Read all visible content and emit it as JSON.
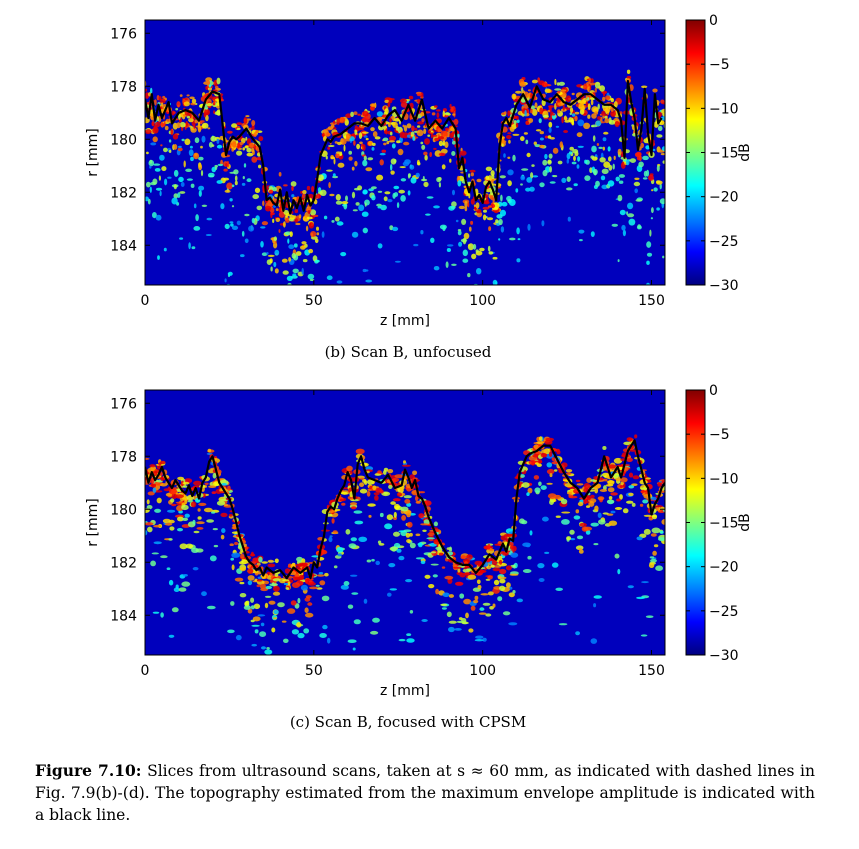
{
  "chart_data": [
    {
      "type": "heatmap",
      "panel": "b",
      "subcaption": "(b) Scan B, unfocused",
      "xlabel": "z [mm]",
      "ylabel": "r [mm]",
      "xlim": [
        0,
        154
      ],
      "ylim": [
        185.5,
        175.5
      ],
      "xticks": [
        0,
        50,
        100,
        150
      ],
      "yticks": [
        176,
        178,
        180,
        182,
        184
      ],
      "colorbar": {
        "label": "dB",
        "range": [
          -30,
          0
        ],
        "ticks": [
          0,
          -5,
          -10,
          -15,
          -20,
          -25,
          -30
        ]
      },
      "topography": {
        "z": [
          0,
          1,
          2,
          3,
          4,
          5,
          6,
          7,
          8,
          10,
          12,
          14,
          16,
          18,
          20,
          22,
          24,
          25,
          26,
          27,
          28,
          30,
          32,
          34,
          35,
          36,
          37,
          38,
          39,
          40,
          41,
          42,
          43,
          44,
          45,
          46,
          47,
          48,
          49,
          50,
          51,
          52,
          53,
          54,
          55,
          56,
          58,
          60,
          62,
          64,
          66,
          68,
          70,
          72,
          74,
          76,
          78,
          80,
          82,
          84,
          86,
          88,
          90,
          92,
          93,
          94,
          95,
          96,
          97,
          98,
          99,
          100,
          101,
          102,
          103,
          104,
          105,
          106,
          107,
          108,
          110,
          112,
          114,
          116,
          118,
          120,
          122,
          124,
          126,
          128,
          130,
          132,
          134,
          136,
          138,
          140,
          141,
          142,
          143,
          144,
          145,
          146,
          147,
          148,
          149,
          150,
          151,
          152,
          153
        ],
        "r": [
          178.5,
          179.2,
          178.3,
          179.3,
          178.7,
          179.2,
          178.9,
          178.6,
          179.4,
          179.0,
          178.9,
          179.0,
          179.3,
          178.5,
          178.2,
          178.3,
          180.6,
          180.1,
          179.9,
          180.0,
          179.9,
          179.6,
          180.0,
          180.3,
          181.0,
          182.3,
          182.2,
          182.4,
          182.5,
          181.9,
          182.7,
          182.0,
          182.8,
          182.3,
          182.6,
          182.2,
          182.7,
          182.1,
          182.5,
          182.3,
          181.5,
          180.6,
          180.3,
          180.0,
          180.1,
          179.9,
          179.8,
          179.6,
          179.4,
          179.4,
          179.5,
          179.2,
          179.5,
          179.1,
          178.9,
          179.3,
          178.7,
          179.3,
          178.5,
          179.6,
          179.3,
          179.6,
          179.2,
          179.6,
          181.1,
          180.7,
          181.6,
          182.0,
          181.6,
          182.3,
          182.1,
          182.4,
          181.8,
          181.6,
          181.9,
          182.3,
          180.3,
          179.4,
          179.2,
          179.5,
          178.7,
          178.3,
          178.8,
          178.0,
          178.5,
          178.6,
          178.3,
          178.6,
          178.7,
          178.5,
          178.3,
          178.3,
          178.5,
          178.7,
          178.7,
          178.9,
          179.3,
          180.7,
          177.8,
          178.6,
          179.2,
          180.4,
          179.6,
          178.1,
          179.8,
          180.6,
          178.3,
          179.4,
          179.2
        ]
      }
    },
    {
      "type": "heatmap",
      "panel": "c",
      "subcaption": "(c) Scan B, focused with CPSM",
      "xlabel": "z [mm]",
      "ylabel": "r [mm]",
      "xlim": [
        0,
        154
      ],
      "ylim": [
        185.5,
        175.5
      ],
      "xticks": [
        0,
        50,
        100,
        150
      ],
      "yticks": [
        176,
        178,
        180,
        182,
        184
      ],
      "colorbar": {
        "label": "dB",
        "range": [
          -30,
          0
        ],
        "ticks": [
          0,
          -5,
          -10,
          -15,
          -20,
          -25,
          -30
        ]
      },
      "topography": {
        "z": [
          0,
          1,
          2,
          3,
          4,
          5,
          6,
          7,
          8,
          9,
          10,
          11,
          12,
          13,
          14,
          15,
          16,
          17,
          18,
          19,
          20,
          21,
          22,
          23,
          24,
          25,
          26,
          27,
          28,
          29,
          30,
          31,
          32,
          33,
          34,
          35,
          36,
          38,
          40,
          42,
          44,
          46,
          48,
          49,
          50,
          51,
          52,
          53,
          54,
          55,
          56,
          57,
          58,
          59,
          60,
          61,
          62,
          63,
          64,
          65,
          66,
          68,
          70,
          72,
          74,
          76,
          77,
          78,
          79,
          80,
          81,
          82,
          83,
          84,
          85,
          86,
          88,
          90,
          92,
          94,
          96,
          98,
          100,
          102,
          104,
          106,
          107,
          108,
          109,
          110,
          111,
          112,
          113,
          114,
          116,
          118,
          120,
          122,
          124,
          126,
          128,
          130,
          132,
          134,
          136,
          138,
          140,
          141,
          142,
          143,
          144,
          145,
          146,
          147,
          148,
          149,
          150,
          151,
          152,
          153,
          154
        ],
        "r": [
          178.4,
          179.0,
          178.6,
          178.9,
          178.7,
          178.4,
          178.8,
          179.0,
          179.2,
          178.9,
          179.1,
          179.3,
          179.4,
          179.1,
          179.5,
          179.2,
          179.6,
          179.0,
          178.8,
          178.2,
          178.0,
          178.5,
          179.0,
          179.2,
          179.4,
          179.6,
          180.0,
          180.5,
          181.0,
          181.4,
          181.8,
          182.0,
          182.1,
          182.3,
          182.2,
          182.5,
          182.2,
          182.4,
          182.3,
          182.6,
          182.2,
          182.4,
          182.2,
          182.6,
          182.0,
          182.2,
          181.5,
          181.0,
          180.1,
          179.9,
          180.0,
          179.6,
          179.3,
          179.1,
          178.6,
          178.9,
          179.6,
          178.3,
          178.0,
          178.5,
          178.8,
          178.9,
          179.0,
          178.7,
          179.2,
          179.1,
          178.5,
          178.8,
          179.2,
          178.9,
          179.5,
          179.6,
          179.9,
          180.3,
          180.6,
          180.9,
          181.4,
          181.8,
          182.0,
          182.1,
          182.1,
          182.4,
          182.1,
          181.7,
          181.9,
          181.3,
          181.6,
          181.1,
          181.2,
          179.6,
          178.6,
          178.3,
          178.0,
          177.9,
          177.8,
          177.6,
          177.6,
          178.1,
          178.6,
          179.0,
          179.2,
          179.6,
          179.2,
          179.0,
          178.0,
          178.8,
          178.4,
          178.8,
          178.3,
          177.8,
          177.6,
          177.4,
          178.0,
          178.5,
          179.0,
          179.2,
          180.2,
          179.8,
          179.6,
          179.2,
          179.0
        ]
      }
    }
  ],
  "caption": {
    "label": "Figure 7.10:",
    "text": "Slices from ultrasound scans, taken at s ≈ 60 mm, as indicated with dashed lines in Fig. 7.9(b)-(d). The topography estimated from the maximum envelope amplitude is indicated with a black line."
  }
}
